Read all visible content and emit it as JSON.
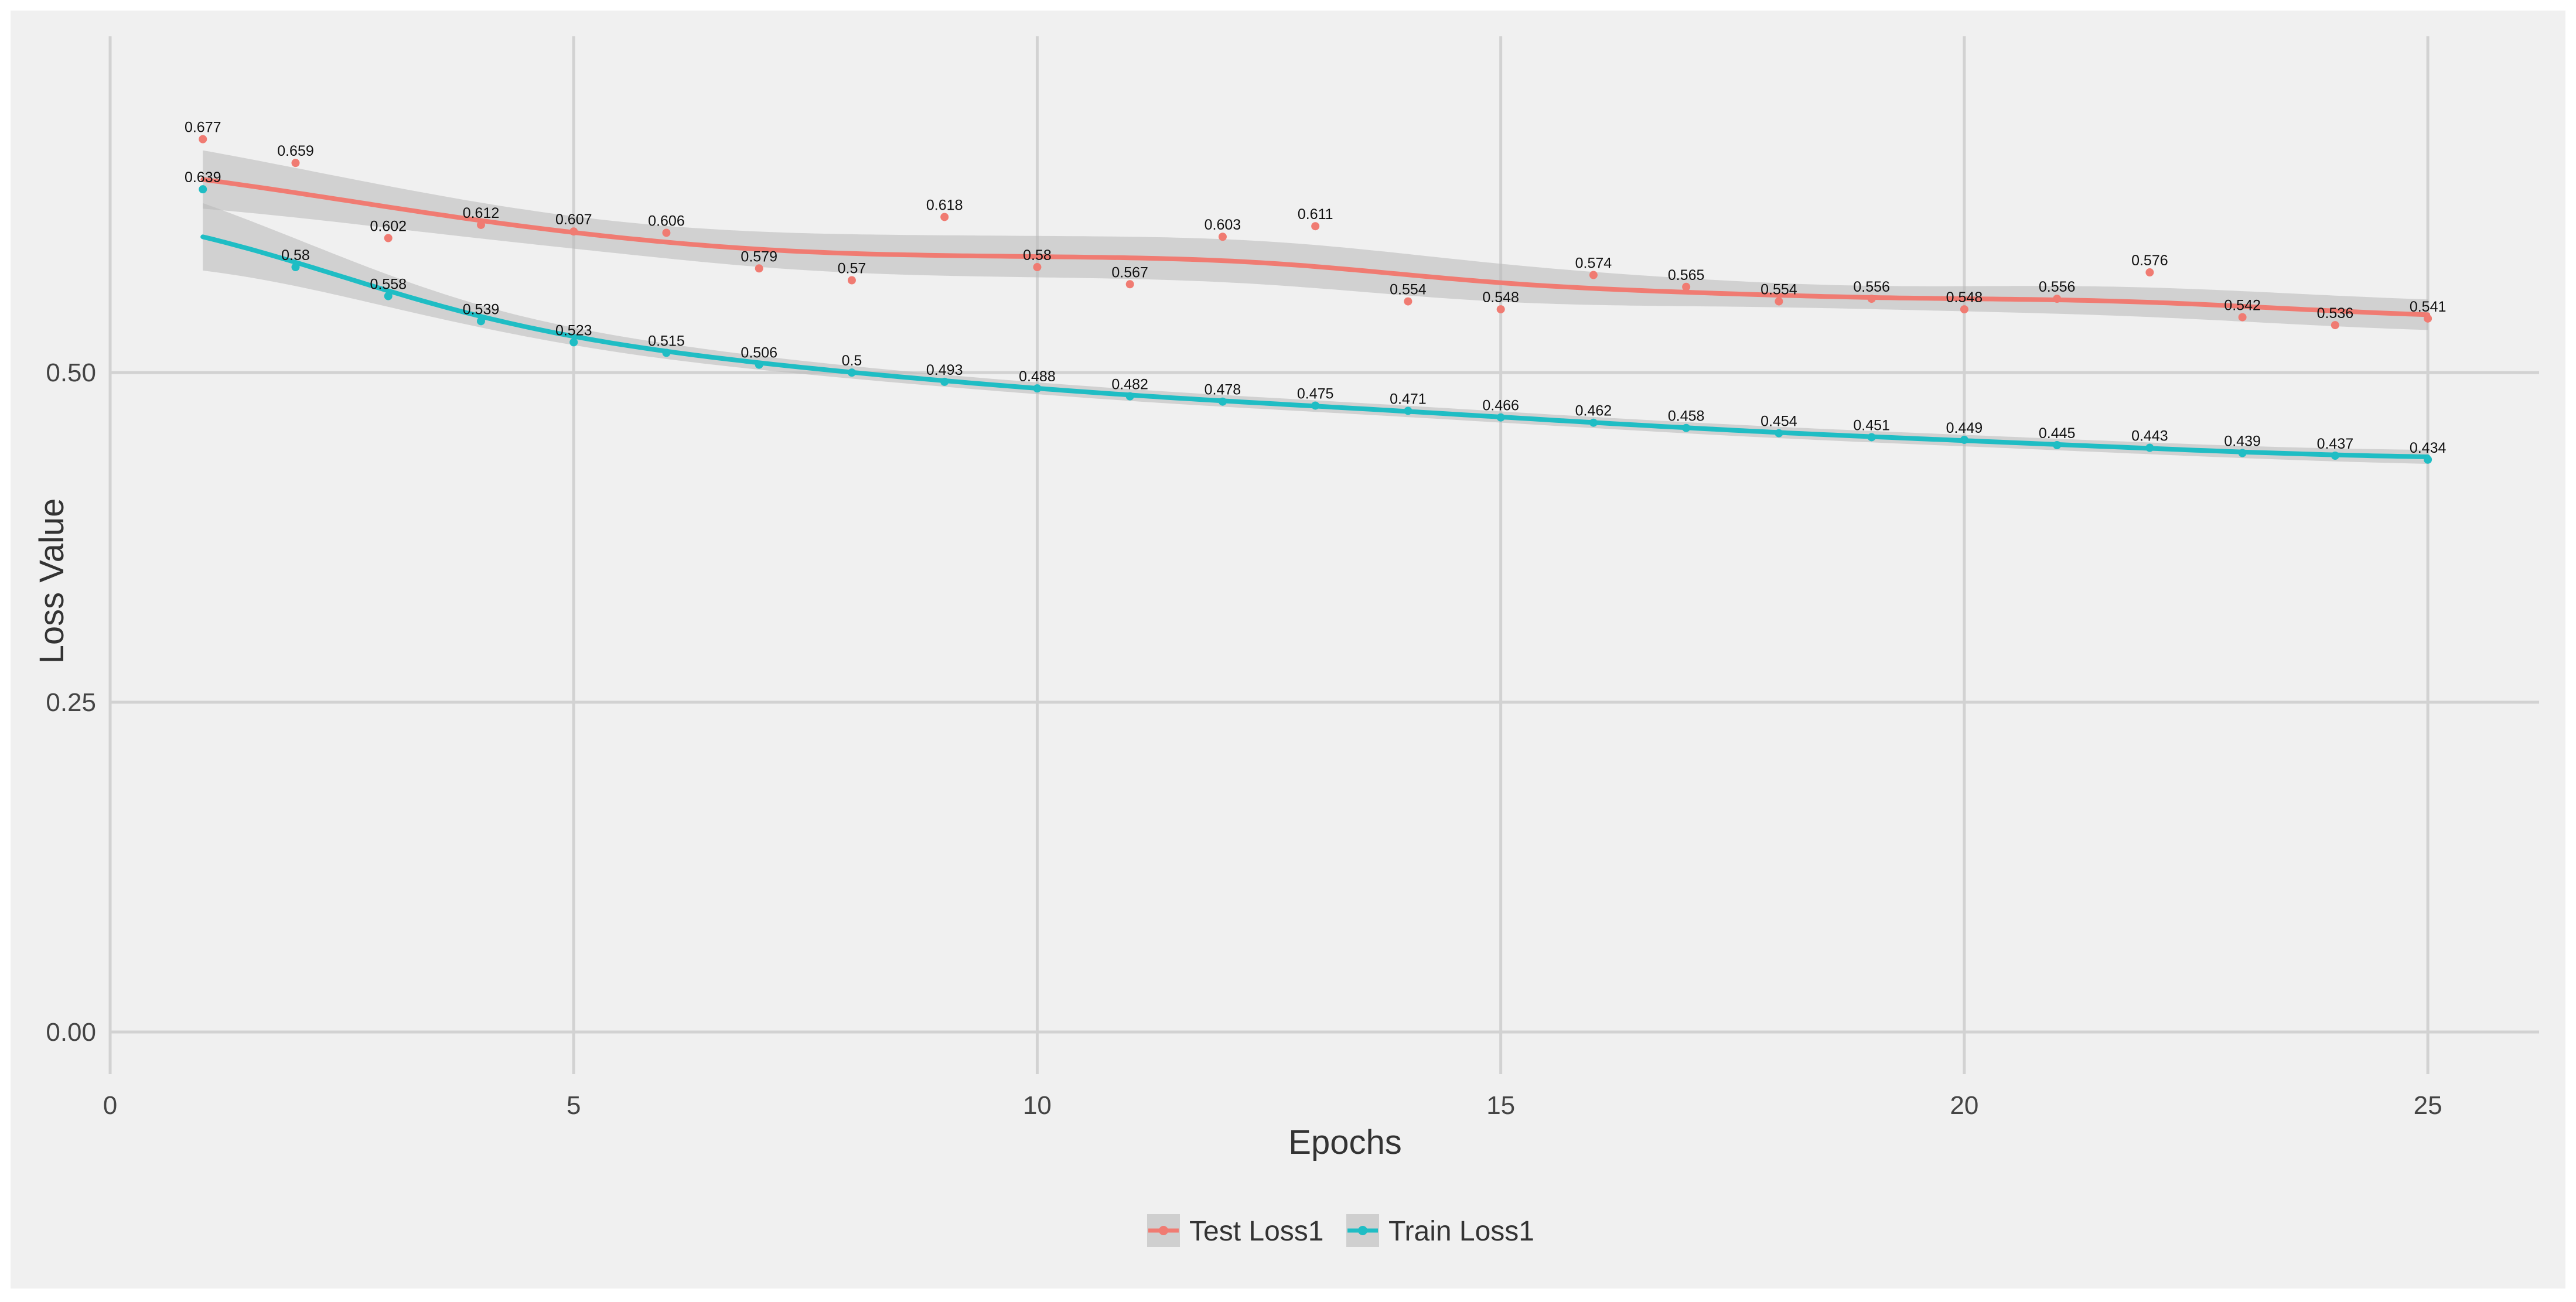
{
  "chart_data": {
    "type": "line",
    "title": "",
    "xlabel": "Epochs",
    "ylabel": "Loss Value",
    "xlim": [
      0,
      26.2
    ],
    "ylim": [
      -0.032,
      0.755
    ],
    "x_ticks": [
      0,
      5,
      10,
      15,
      20,
      25
    ],
    "x_tick_labels": [
      "0",
      "5",
      "10",
      "15",
      "20",
      "25"
    ],
    "y_ticks": [
      0.0,
      0.25,
      0.5
    ],
    "y_tick_labels": [
      "0.00",
      "0.25",
      "0.50"
    ],
    "grid": true,
    "legend": "bottom",
    "background_color": "#f0f0f0",
    "x": [
      1,
      2,
      3,
      4,
      5,
      6,
      7,
      8,
      9,
      10,
      11,
      12,
      13,
      14,
      15,
      16,
      17,
      18,
      19,
      20,
      21,
      22,
      23,
      24,
      25
    ],
    "series": [
      {
        "name": "Test Loss1",
        "color": "#f07b72",
        "smooth": true,
        "values": [
          0.677,
          0.659,
          0.602,
          0.612,
          0.607,
          0.606,
          0.579,
          0.57,
          0.618,
          0.58,
          0.567,
          0.603,
          0.611,
          0.554,
          0.548,
          0.574,
          0.565,
          0.554,
          0.556,
          0.548,
          0.556,
          0.576,
          0.542,
          0.536,
          0.541
        ],
        "labels": [
          "0.677",
          "0.659",
          "0.602",
          "0.612",
          "0.607",
          "0.606",
          "0.579",
          "0.57",
          "0.618",
          "0.58",
          "0.567",
          "0.603",
          "0.611",
          "0.554",
          "0.548",
          "0.574",
          "0.565",
          "0.554",
          "0.556",
          "0.548",
          "0.556",
          "0.576",
          "0.542",
          "0.536",
          "0.541"
        ]
      },
      {
        "name": "Train Loss1",
        "color": "#1fbdc4",
        "smooth": true,
        "values": [
          0.639,
          0.58,
          0.558,
          0.539,
          0.523,
          0.515,
          0.506,
          0.5,
          0.493,
          0.488,
          0.482,
          0.478,
          0.475,
          0.471,
          0.466,
          0.462,
          0.458,
          0.454,
          0.451,
          0.449,
          0.445,
          0.443,
          0.439,
          0.437,
          0.434
        ],
        "labels": [
          "0.639",
          "0.58",
          "0.558",
          "0.539",
          "0.523",
          "0.515",
          "0.506",
          "0.5",
          "0.493",
          "0.488",
          "0.482",
          "0.478",
          "0.475",
          "0.471",
          "0.466",
          "0.462",
          "0.458",
          "0.454",
          "0.451",
          "0.449",
          "0.445",
          "0.443",
          "0.439",
          "0.437",
          "0.434"
        ]
      }
    ]
  }
}
